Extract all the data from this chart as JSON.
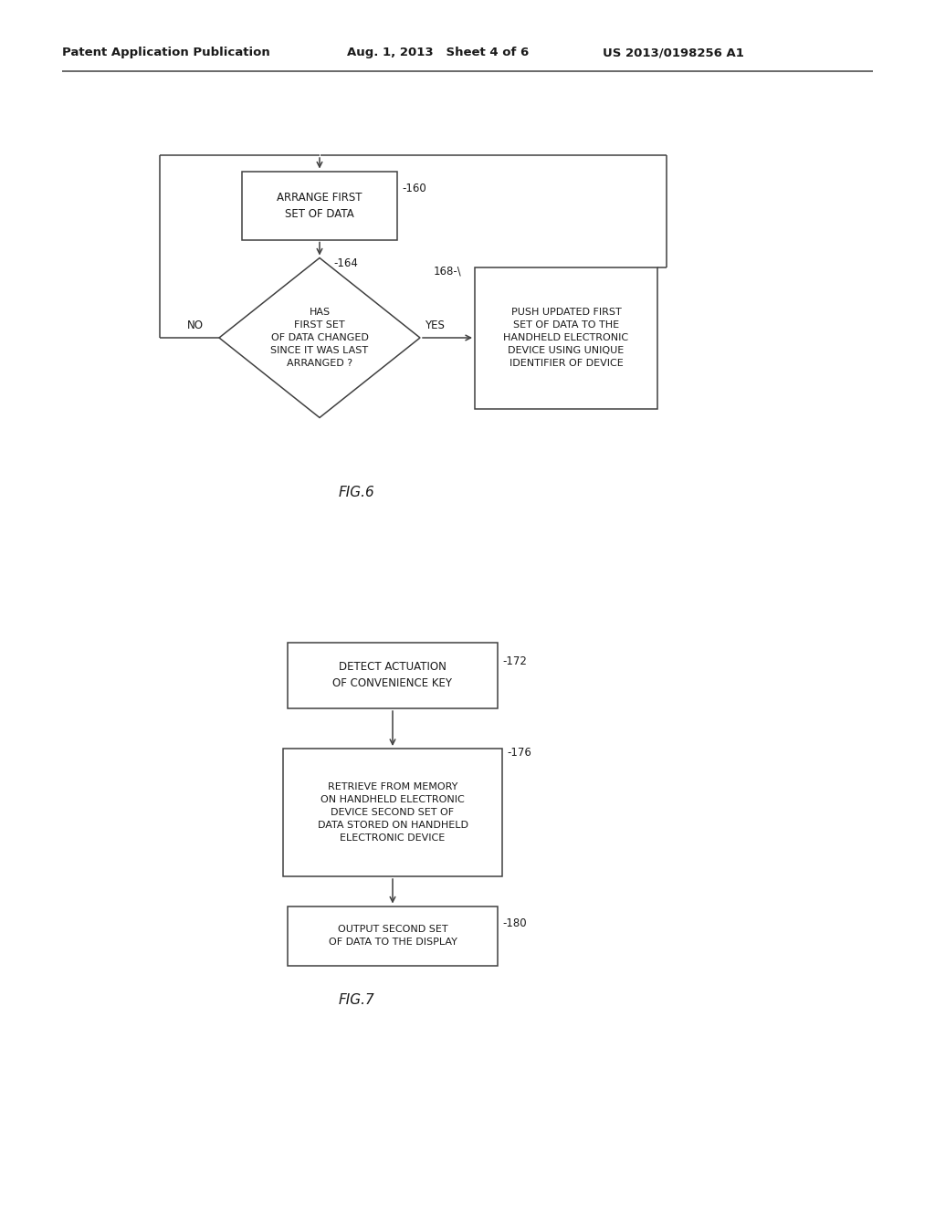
{
  "bg_color": "#ffffff",
  "header_left": "Patent Application Publication",
  "header_mid": "Aug. 1, 2013   Sheet 4 of 6",
  "header_right": "US 2013/0198256 A1",
  "fig6_label": "FIG.6",
  "fig7_label": "FIG.7",
  "box160_text": "ARRANGE FIRST\nSET OF DATA",
  "box160_label": "160",
  "diamond164_text": "HAS\nFIRST SET\nOF DATA CHANGED\nSINCE IT WAS LAST\nARRANGED ?",
  "diamond164_label": "164",
  "box168_text": "PUSH UPDATED FIRST\nSET OF DATA TO THE\nHANDHELD ELECTRONIC\nDEVICE USING UNIQUE\nIDENTIFIER OF DEVICE",
  "box168_label": "168",
  "label_yes": "YES",
  "label_no": "NO",
  "box172_text": "DETECT ACTUATION\nOF CONVENIENCE KEY",
  "box172_label": "172",
  "box176_text": "RETRIEVE FROM MEMORY\nON HANDHELD ELECTRONIC\nDEVICE SECOND SET OF\nDATA STORED ON HANDHELD\nELECTRONIC DEVICE",
  "box176_label": "176",
  "box180_text": "OUTPUT SECOND SET\nOF DATA TO THE DISPLAY",
  "box180_label": "180"
}
